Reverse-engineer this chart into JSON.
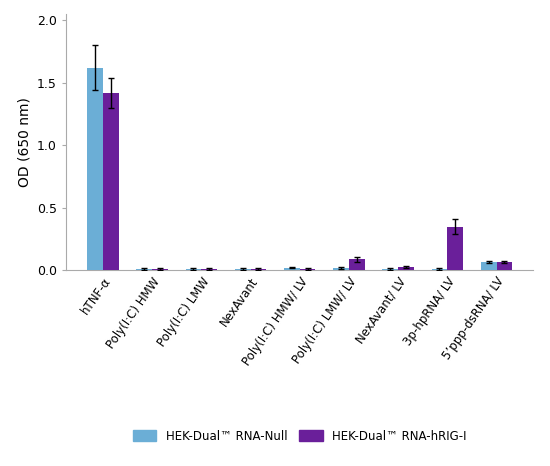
{
  "categories": [
    "hTNF-α",
    "Poly(I:C) HMW",
    "Poly(I:C) LMW",
    "NexAvant",
    "Poly(I:C) HMW/ LV",
    "Poly(I:C) LMW/ LV",
    "NexAvant/ LV",
    "3p-hpRNA/ LV",
    "5’ppp-dsRNA/ LV"
  ],
  "null_values": [
    1.62,
    0.01,
    0.01,
    0.01,
    0.02,
    0.02,
    0.01,
    0.01,
    0.065
  ],
  "null_errors": [
    0.18,
    0.005,
    0.005,
    0.005,
    0.005,
    0.01,
    0.005,
    0.01,
    0.01
  ],
  "hrig_values": [
    1.42,
    0.01,
    0.01,
    0.01,
    0.01,
    0.09,
    0.025,
    0.35,
    0.065
  ],
  "hrig_errors": [
    0.12,
    0.005,
    0.005,
    0.005,
    0.005,
    0.02,
    0.01,
    0.06,
    0.01
  ],
  "null_color": "#6baed6",
  "hrig_color": "#6a1f9a",
  "ylabel": "OD (650 nm)",
  "ylim": [
    0,
    2.05
  ],
  "yticks": [
    0.0,
    0.5,
    1.0,
    1.5,
    2.0
  ],
  "legend_null": "HEK-Dual™ RNA-Null",
  "legend_hrig": "HEK-Dual™ RNA-hRIG-I",
  "bar_width": 0.32,
  "figsize": [
    5.5,
    4.66
  ],
  "dpi": 100
}
